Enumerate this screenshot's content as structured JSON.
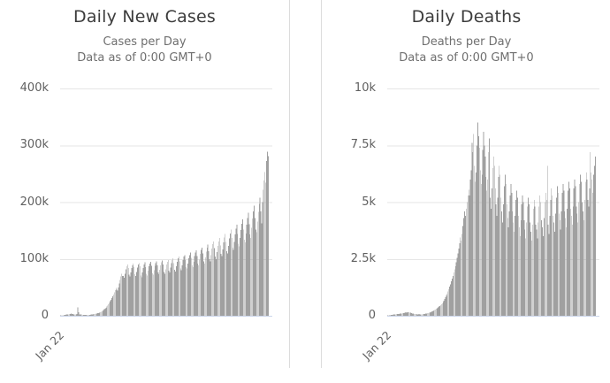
{
  "colors": {
    "bar": "#a0a0a0",
    "gridline": "#e6e6e6",
    "axis_line": "#ccd6eb",
    "title": "#3c3c3c",
    "subtitle": "#6f6f6f",
    "tick_label": "#606060",
    "panel_border": "#dcdcdc",
    "background": "#ffffff"
  },
  "chart_data": [
    {
      "type": "bar",
      "title": "Daily New Cases",
      "subtitle": [
        "Cases per Day",
        "Data as of 0:00 GMT+0"
      ],
      "x_first_tick": "Jan 22",
      "x_tick_rotation": -45,
      "values_unit": "thousands",
      "ylim": [
        0,
        400
      ],
      "yticks": [
        {
          "label": "400k",
          "value": 400
        },
        {
          "label": "300k",
          "value": 300
        },
        {
          "label": "200k",
          "value": 200
        },
        {
          "label": "100k",
          "value": 100
        },
        {
          "label": "0",
          "value": 0
        }
      ],
      "grid": true,
      "legend": false,
      "values": [
        0.4,
        0.5,
        0.7,
        0.8,
        0.9,
        1.8,
        1.7,
        2.0,
        2.2,
        2.6,
        2.4,
        3.0,
        3.3,
        3.6,
        3.2,
        2.9,
        2.6,
        2.4,
        2.2,
        2.6,
        2.8,
        15.1,
        6.4,
        2.3,
        2.0,
        2.2,
        2.1,
        1.9,
        1.8,
        1.6,
        1.2,
        1.4,
        1.3,
        1.6,
        1.8,
        1.7,
        1.9,
        2.1,
        2.4,
        2.6,
        2.8,
        3.0,
        3.3,
        3.6,
        4.0,
        4.4,
        4.9,
        5.5,
        6.2,
        7.0,
        7.9,
        8.9,
        10.0,
        11.3,
        12.7,
        14.3,
        16.1,
        18.1,
        20.3,
        22.7,
        25.3,
        28.1,
        31.1,
        34.3,
        37.7,
        41,
        45,
        49,
        46,
        44,
        50,
        57,
        63,
        69,
        74,
        70,
        70,
        67,
        74,
        82,
        87,
        90,
        84,
        72,
        69,
        76,
        84,
        89,
        92,
        86,
        73,
        70,
        77,
        85,
        90,
        93,
        87,
        71,
        68,
        76,
        84,
        90,
        94,
        86,
        74,
        71,
        79,
        87,
        92,
        95,
        88,
        75,
        72,
        80,
        88,
        93,
        96,
        89,
        76,
        73,
        81,
        89,
        94,
        97,
        90,
        77,
        74,
        82,
        90,
        95,
        98,
        79,
        76,
        85,
        93,
        98,
        101,
        93,
        81,
        78,
        87,
        95,
        101,
        104,
        96,
        83,
        80,
        89,
        98,
        104,
        107,
        98,
        86,
        83,
        92,
        101,
        107,
        111,
        102,
        89,
        86,
        95,
        105,
        111,
        115,
        105,
        92,
        89,
        99,
        109,
        116,
        120,
        110,
        96,
        92,
        103,
        113,
        120,
        125,
        114,
        100,
        96,
        107,
        118,
        126,
        131,
        119,
        104,
        100,
        112,
        123,
        131,
        137,
        124,
        109,
        105,
        117,
        129,
        138,
        144,
        130,
        114,
        110,
        123,
        136,
        145,
        152,
        137,
        120,
        116,
        130,
        143,
        153,
        160,
        144,
        127,
        122,
        137,
        151,
        162,
        170,
        152,
        134,
        129,
        145,
        160,
        172,
        181,
        161,
        143,
        137,
        155,
        171,
        184,
        194,
        172,
        152,
        147,
        166,
        183,
        197,
        208,
        184,
        163,
        200,
        222,
        238,
        253,
        234,
        272,
        289,
        281
      ]
    },
    {
      "type": "bar",
      "title": "Daily Deaths",
      "subtitle": [
        "Deaths per Day",
        "Data as of 0:00 GMT+0"
      ],
      "x_first_tick": "Jan 22",
      "x_tick_rotation": -45,
      "values_unit": "thousands",
      "ylim": [
        0,
        10
      ],
      "yticks": [
        {
          "label": "10k",
          "value": 10
        },
        {
          "label": "7.5k",
          "value": 7.5
        },
        {
          "label": "5k",
          "value": 5
        },
        {
          "label": "2.5k",
          "value": 2.5
        },
        {
          "label": "0",
          "value": 0
        }
      ],
      "grid": true,
      "legend": false,
      "values": [
        0.02,
        0.02,
        0.03,
        0.03,
        0.03,
        0.04,
        0.04,
        0.05,
        0.05,
        0.06,
        0.06,
        0.07,
        0.07,
        0.08,
        0.08,
        0.09,
        0.1,
        0.1,
        0.11,
        0.12,
        0.12,
        0.13,
        0.15,
        0.14,
        0.15,
        0.16,
        0.15,
        0.14,
        0.13,
        0.12,
        0.1,
        0.09,
        0.08,
        0.08,
        0.07,
        0.07,
        0.06,
        0.06,
        0.07,
        0.05,
        0.05,
        0.06,
        0.06,
        0.07,
        0.07,
        0.08,
        0.09,
        0.1,
        0.11,
        0.12,
        0.13,
        0.14,
        0.16,
        0.18,
        0.2,
        0.22,
        0.24,
        0.26,
        0.28,
        0.31,
        0.34,
        0.37,
        0.4,
        0.43,
        0.46,
        0.5,
        0.55,
        0.61,
        0.67,
        0.74,
        0.81,
        0.89,
        0.98,
        1.07,
        1.17,
        1.28,
        1.39,
        1.51,
        1.63,
        1.76,
        1.9,
        2.04,
        2.18,
        2.35,
        2.55,
        2.75,
        2.95,
        3.2,
        3.45,
        3.3,
        3.6,
        3.95,
        4.3,
        4.6,
        4.4,
        4.7,
        5.0,
        5.3,
        5.55,
        5.3,
        6.0,
        6.4,
        7.6,
        7.2,
        8.0,
        6.6,
        5.9,
        6.3,
        7.5,
        8.5,
        7.9,
        7.4,
        6.4,
        5.8,
        6.2,
        7.3,
        8.1,
        7.5,
        7.0,
        6.1,
        5.5,
        6.0,
        7.2,
        7.8,
        5.2,
        4.7,
        5.6,
        6.5,
        7.0,
        6.6,
        5.6,
        4.9,
        4.4,
        5.2,
        6.1,
        6.6,
        6.2,
        5.2,
        4.6,
        4.1,
        4.9,
        5.7,
        6.2,
        5.8,
        4.9,
        4.3,
        3.9,
        4.6,
        5.3,
        5.8,
        5.4,
        4.6,
        4.1,
        3.7,
        4.4,
        5.1,
        5.5,
        5.2,
        4.4,
        3.9,
        3.5,
        4.2,
        4.9,
        5.3,
        5.0,
        4.2,
        3.8,
        3.4,
        4.1,
        4.8,
        5.2,
        4.9,
        4.1,
        3.7,
        3.3,
        4.0,
        4.7,
        5.1,
        4.8,
        4.0,
        3.8,
        3.4,
        4.1,
        4.8,
        5.3,
        5.0,
        4.2,
        3.9,
        3.5,
        4.3,
        5.0,
        5.4,
        5.1,
        6.6,
        4.0,
        3.6,
        4.4,
        5.1,
        5.6,
        5.3,
        4.4,
        4.1,
        3.7,
        4.5,
        5.2,
        5.7,
        5.4,
        4.5,
        4.2,
        3.8,
        4.6,
        5.4,
        5.8,
        5.5,
        4.6,
        4.3,
        3.9,
        4.7,
        5.5,
        5.9,
        5.6,
        4.7,
        4.4,
        4.0,
        4.8,
        5.6,
        6.0,
        5.7,
        4.8,
        4.5,
        4.1,
        5.0,
        5.8,
        6.2,
        5.9,
        5.0,
        4.6,
        4.2,
        5.1,
        5.9,
        6.3,
        6.0,
        5.1,
        4.8,
        5.6,
        7.2,
        6.3,
        6.0,
        5.4,
        6.2,
        6.6,
        7.0
      ]
    }
  ]
}
